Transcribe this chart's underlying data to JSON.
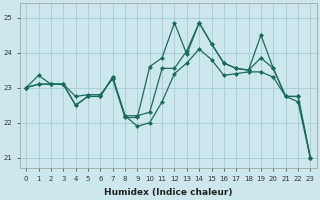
{
  "xlabel": "Humidex (Indice chaleur)",
  "bg_color": "#cce8ec",
  "grid_color": "#aad0d6",
  "line_color": "#1a6b5c",
  "xlim": [
    -0.5,
    23.5
  ],
  "ylim": [
    20.7,
    25.4
  ],
  "yticks": [
    21,
    22,
    23,
    24,
    25
  ],
  "xticks": [
    0,
    1,
    2,
    3,
    4,
    5,
    6,
    7,
    8,
    9,
    10,
    11,
    12,
    13,
    14,
    15,
    16,
    17,
    18,
    19,
    20,
    21,
    22,
    23
  ],
  "line1_x": [
    0,
    1,
    2,
    3,
    4,
    5,
    6,
    7,
    8,
    9,
    10,
    11,
    12,
    13,
    14,
    15,
    16,
    17,
    18,
    19,
    20,
    21,
    22,
    23
  ],
  "line1_y": [
    23.0,
    23.35,
    23.1,
    23.1,
    22.75,
    22.8,
    22.8,
    23.25,
    22.15,
    22.15,
    23.6,
    23.85,
    24.85,
    23.95,
    24.85,
    24.25,
    23.7,
    23.55,
    23.5,
    23.85,
    23.55,
    22.75,
    22.75,
    21.0
  ],
  "line2_x": [
    0,
    1,
    2,
    3,
    4,
    5,
    6,
    7,
    8,
    9,
    10,
    11,
    12,
    13,
    14,
    15,
    16,
    17,
    18,
    19,
    20,
    21,
    22,
    23
  ],
  "line2_y": [
    23.0,
    23.1,
    23.1,
    23.1,
    22.5,
    22.75,
    22.75,
    23.3,
    22.2,
    22.2,
    22.3,
    23.55,
    23.55,
    24.05,
    24.85,
    24.25,
    23.7,
    23.55,
    23.5,
    24.5,
    23.55,
    22.75,
    22.75,
    21.0
  ],
  "line3_x": [
    0,
    1,
    2,
    3,
    4,
    5,
    6,
    7,
    8,
    9,
    10,
    11,
    12,
    13,
    14,
    15,
    16,
    17,
    18,
    19,
    20,
    21,
    22,
    23
  ],
  "line3_y": [
    23.0,
    23.1,
    23.1,
    23.1,
    22.5,
    22.75,
    22.75,
    23.3,
    22.2,
    21.9,
    22.0,
    22.6,
    23.4,
    23.7,
    24.1,
    23.8,
    23.35,
    23.4,
    23.45,
    23.45,
    23.3,
    22.75,
    22.6,
    21.0
  ]
}
